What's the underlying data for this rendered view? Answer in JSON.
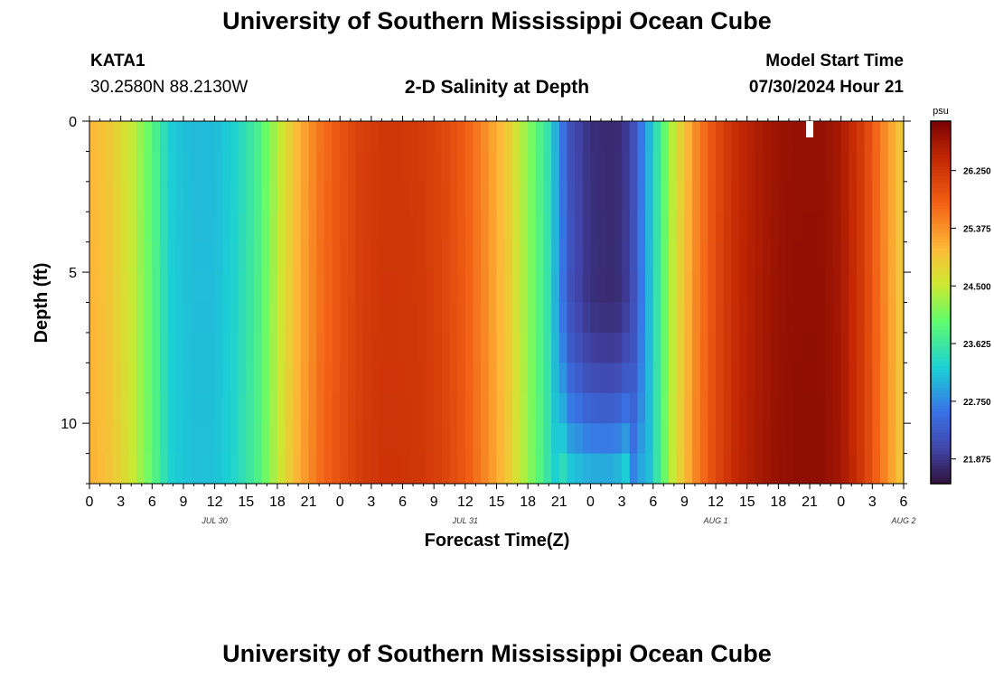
{
  "header": {
    "title": "University of Southern Mississippi Ocean Cube",
    "station": "KATA1",
    "coords": "30.2580N  88.2130W",
    "subtitle": "2-D Salinity at Depth",
    "model_label": "Model Start Time",
    "model_time": "07/30/2024 Hour 21"
  },
  "footer": {
    "title": "University of Southern Mississippi Ocean Cube"
  },
  "chart_data": {
    "type": "heatmap",
    "title": "2-D Salinity at Depth",
    "xlabel": "Forecast Time(Z)",
    "ylabel": "Depth (ft)",
    "x_tick_labels": [
      "0",
      "3",
      "6",
      "9",
      "12",
      "15",
      "18",
      "21",
      "0",
      "3",
      "6",
      "9",
      "12",
      "15",
      "18",
      "21",
      "0",
      "3",
      "6",
      "9",
      "12",
      "15",
      "18",
      "21",
      "0",
      "3",
      "6"
    ],
    "date_labels": [
      {
        "label": "JUL 30",
        "hour": 12
      },
      {
        "label": "JUL 31",
        "hour": 36
      },
      {
        "label": "AUG 1",
        "hour": 60
      },
      {
        "label": "AUG 2",
        "hour": 78
      }
    ],
    "xlim_hours": [
      0,
      78
    ],
    "ylim_ft": [
      0,
      12
    ],
    "y_tick_labels": [
      "0",
      "5",
      "10"
    ],
    "colorbar": {
      "unit": "psu",
      "min": 21.5,
      "max": 27.0,
      "tick_labels": [
        "21.875",
        "22.750",
        "23.625",
        "24.500",
        "25.375",
        "26.250"
      ],
      "tick_values": [
        21.875,
        22.75,
        23.625,
        24.5,
        25.375,
        26.25
      ]
    },
    "current_time_marker_hour": 69,
    "surface_salinity_profile": {
      "hours": [
        0,
        2,
        4,
        6,
        7,
        8,
        10,
        12,
        14,
        16,
        18,
        20,
        22,
        24,
        26,
        28,
        30,
        32,
        34,
        36,
        38,
        40,
        42,
        44,
        45,
        46,
        48,
        50,
        51,
        52,
        54,
        56,
        58,
        60,
        62,
        64,
        66,
        68,
        70,
        72,
        74,
        76,
        78
      ],
      "values": [
        25.1,
        24.9,
        24.5,
        23.9,
        23.5,
        23.2,
        23.1,
        23.1,
        23.3,
        23.7,
        24.4,
        25.1,
        25.6,
        25.9,
        26.15,
        26.25,
        26.25,
        26.2,
        26.05,
        25.8,
        25.4,
        24.9,
        24.2,
        23.5,
        22.8,
        22.2,
        21.8,
        21.75,
        21.8,
        22.1,
        23.3,
        24.5,
        25.4,
        26.0,
        26.4,
        26.6,
        26.75,
        26.8,
        26.8,
        26.65,
        26.2,
        25.5,
        24.8
      ]
    },
    "deep_trough_salinity": {
      "hours": [
        45,
        46,
        48,
        50,
        51,
        52
      ],
      "values_at_bottom": [
        23.6,
        23.2,
        23.0,
        23.0,
        23.1,
        23.5
      ]
    }
  }
}
